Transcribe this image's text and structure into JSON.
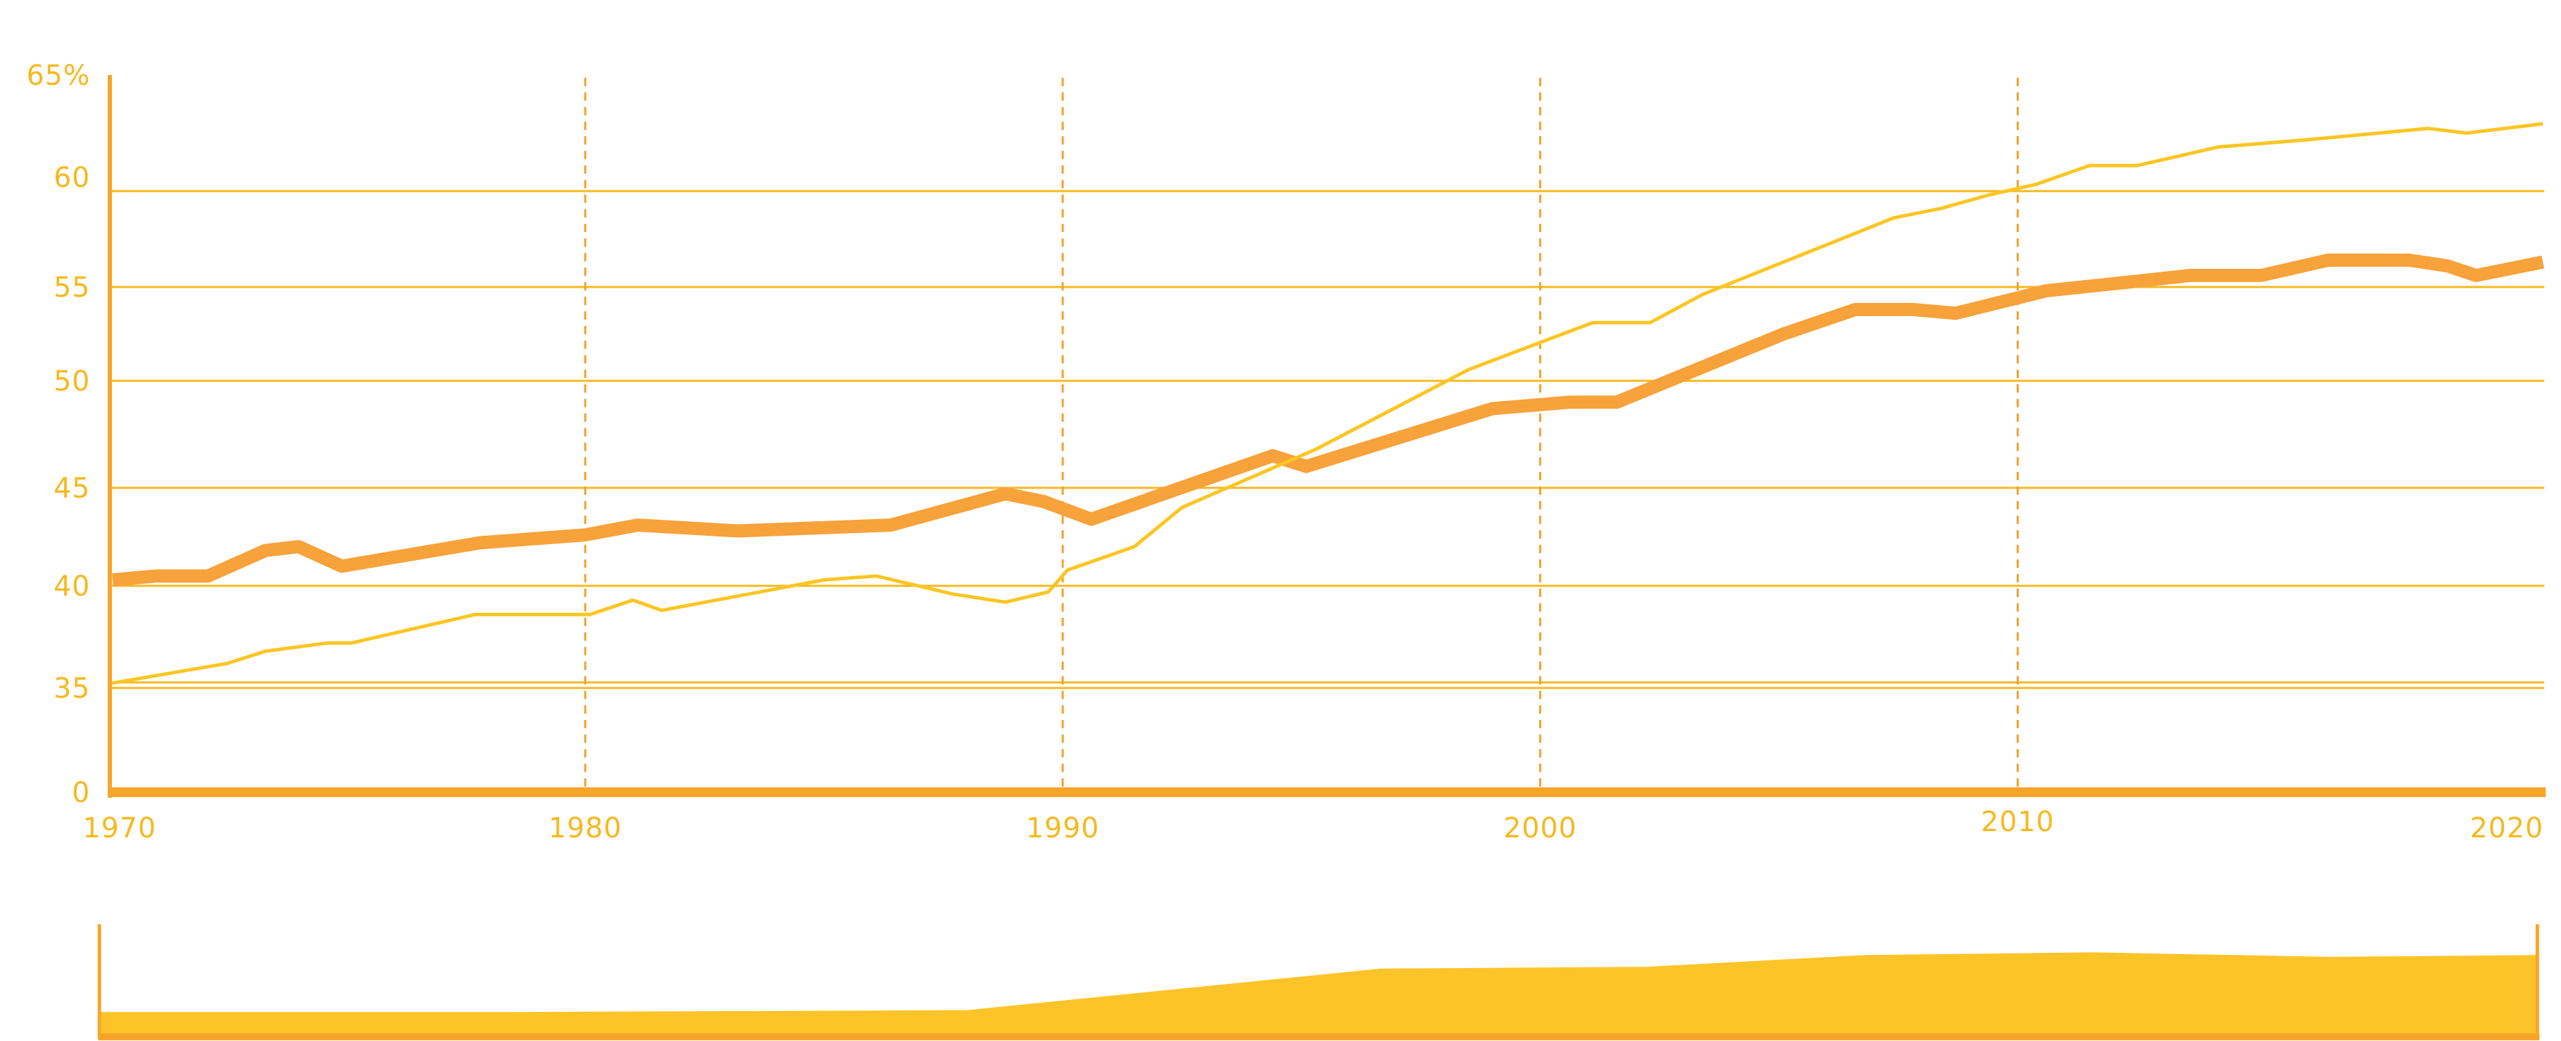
{
  "chart_data": [
    {
      "type": "line",
      "title": "",
      "xlabel": "",
      "ylabel": "",
      "x_ticks": [
        "1970",
        "1980",
        "1990",
        "2000",
        "2010",
        "2020"
      ],
      "y_ticks": [
        "0",
        "35",
        "40",
        "45",
        "50",
        "55",
        "60",
        "65%"
      ],
      "y_scale": "broken (0 then 35 to 65)",
      "xlim": [
        1970,
        2021
      ],
      "ylim": [
        35,
        65
      ],
      "grid": "horizontal solid lines at 35, 40, 45, 50, 55, 60; vertical dashed lines at 1980, 1990, 2000, 2010",
      "series": [
        {
          "style": "thick orange line",
          "color": "#f7a23b",
          "points": [
            [
              1970.1,
              40.3
            ],
            [
              1971.0,
              40.5
            ],
            [
              1972.1,
              40.5
            ],
            [
              1973.3,
              41.8
            ],
            [
              1974.0,
              42.0
            ],
            [
              1974.9,
              41.0
            ],
            [
              1977.8,
              42.2
            ],
            [
              1980.0,
              42.6
            ],
            [
              1981.1,
              43.1
            ],
            [
              1983.2,
              42.8
            ],
            [
              1986.4,
              43.1
            ],
            [
              1988.8,
              44.7
            ],
            [
              1989.6,
              44.3
            ],
            [
              1990.6,
              43.4
            ],
            [
              1994.4,
              46.5
            ],
            [
              1995.1,
              46.0
            ],
            [
              1999.0,
              48.7
            ],
            [
              2000.6,
              49.0
            ],
            [
              2001.6,
              49.0
            ],
            [
              2005.1,
              52.5
            ],
            [
              2006.6,
              53.8
            ],
            [
              2007.8,
              53.8
            ],
            [
              2008.7,
              53.6
            ],
            [
              2010.6,
              54.8
            ],
            [
              2012.5,
              55.3
            ],
            [
              2013.6,
              55.6
            ],
            [
              2015.1,
              55.6
            ],
            [
              2016.5,
              56.4
            ],
            [
              2018.2,
              56.4
            ],
            [
              2019.0,
              56.1
            ],
            [
              2019.6,
              55.6
            ],
            [
              2021.0,
              56.3
            ]
          ]
        },
        {
          "style": "thin yellow line",
          "color": "#fbc624",
          "points": [
            [
              1970.0,
              35.2
            ],
            [
              1972.5,
              36.2
            ],
            [
              1973.3,
              36.8
            ],
            [
              1974.6,
              37.2
            ],
            [
              1975.1,
              37.2
            ],
            [
              1977.7,
              38.6
            ],
            [
              1980.1,
              38.6
            ],
            [
              1981.0,
              39.3
            ],
            [
              1981.6,
              38.8
            ],
            [
              1985.0,
              40.3
            ],
            [
              1986.1,
              40.5
            ],
            [
              1987.7,
              39.6
            ],
            [
              1988.8,
              39.2
            ],
            [
              1989.7,
              39.7
            ],
            [
              1990.1,
              40.8
            ],
            [
              1991.5,
              42.0
            ],
            [
              1992.5,
              44.0
            ],
            [
              1995.3,
              46.8
            ],
            [
              1998.5,
              50.6
            ],
            [
              2001.1,
              53.1
            ],
            [
              2002.3,
              53.1
            ],
            [
              2003.4,
              54.6
            ],
            [
              2007.4,
              58.6
            ],
            [
              2008.4,
              59.1
            ],
            [
              2009.4,
              59.8
            ],
            [
              2010.4,
              60.3
            ],
            [
              2011.5,
              61.1
            ],
            [
              2012.5,
              61.1
            ],
            [
              2014.2,
              61.9
            ],
            [
              2016.0,
              62.2
            ],
            [
              2018.6,
              62.7
            ],
            [
              2019.4,
              62.5
            ],
            [
              2021.0,
              62.9
            ]
          ]
        }
      ]
    },
    {
      "type": "area",
      "title": "",
      "color": "#fdc42a",
      "note": "overview strip beneath the main chart; values are relative heights on a 0 to 1 scale",
      "points": [
        [
          0.0,
          0.26
        ],
        [
          0.17,
          0.26
        ],
        [
          0.356,
          0.28
        ],
        [
          0.526,
          0.74
        ],
        [
          0.635,
          0.76
        ],
        [
          0.725,
          0.89
        ],
        [
          0.818,
          0.92
        ],
        [
          0.915,
          0.87
        ],
        [
          1.0,
          0.89
        ]
      ]
    }
  ]
}
